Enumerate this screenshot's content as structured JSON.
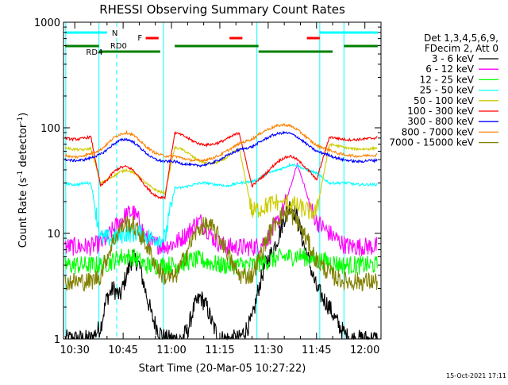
{
  "chart_data": {
    "type": "line",
    "title": "RHESSI Observing Summary Count Rates",
    "xlabel": "Start Time (20-Mar-05 10:27:22)",
    "ylabel_main": "Count Rate (s",
    "ylabel_sup1": "-1",
    "ylabel_mid": " detector",
    "ylabel_sup2": "-1",
    "ylabel_end": ")",
    "yscale": "log",
    "ylim": [
      1,
      1000
    ],
    "xlim_minutes": [
      -3.5,
      95
    ],
    "x_ticks": [
      {
        "value": 0,
        "label": "10:30"
      },
      {
        "value": 15,
        "label": "10:45"
      },
      {
        "value": 30,
        "label": "11:00"
      },
      {
        "value": 45,
        "label": "11:15"
      },
      {
        "value": 60,
        "label": "11:30"
      },
      {
        "value": 75,
        "label": "11:45"
      },
      {
        "value": 90,
        "label": "12:00"
      }
    ],
    "y_ticks": [
      {
        "value": 1,
        "label": "1"
      },
      {
        "value": 10,
        "label": "10"
      },
      {
        "value": 100,
        "label": "100"
      },
      {
        "value": 1000,
        "label": "1000"
      }
    ],
    "legend_header": [
      "Det 1,3,4,5,6,9,",
      "FDecim 2, Att 0"
    ],
    "series": [
      {
        "name": "3 - 6 keV",
        "color": "#000000",
        "y": [
          1,
          1,
          1,
          1,
          1,
          1.3,
          2.5,
          3,
          2.5,
          4,
          6,
          5,
          2.8,
          1.6,
          1.2,
          1,
          1,
          1,
          1.2,
          2,
          2.5,
          2,
          1.3,
          1,
          1,
          1,
          1,
          1.5,
          3,
          5,
          6.5,
          9,
          14,
          19,
          14,
          8,
          5,
          3,
          2,
          1.5,
          1.2,
          1,
          1,
          1,
          1,
          1,
          1
        ]
      },
      {
        "name": "6 - 12 keV",
        "color": "#ff00ff",
        "y": [
          7.5,
          7.5,
          7.5,
          7.5,
          7.5,
          8,
          9,
          11,
          13,
          15,
          16,
          13,
          9,
          8,
          7.8,
          7.6,
          8,
          9,
          10,
          12,
          13,
          11,
          9,
          8,
          7.5,
          7.4,
          7.4,
          7.4,
          7.6,
          8.5,
          10,
          13,
          18,
          28,
          45,
          30,
          18,
          13,
          10,
          9,
          8,
          7.5,
          7.5,
          7.5,
          7.5,
          7.5,
          7.5
        ]
      },
      {
        "name": "12 - 25 keV",
        "color": "#00ff00",
        "y": [
          5,
          5,
          5,
          5,
          5,
          5,
          5.2,
          5.5,
          6,
          6,
          6,
          5.5,
          5,
          5,
          5,
          5,
          5,
          5.2,
          5.4,
          5.6,
          5.6,
          5.4,
          5.2,
          5,
          5,
          5,
          5,
          5,
          5.2,
          5.4,
          5.6,
          5.8,
          6,
          6,
          6.2,
          6,
          5.8,
          5.6,
          5.4,
          5.2,
          5,
          5,
          5,
          5,
          5,
          5,
          5
        ]
      },
      {
        "name": "25 - 50 keV",
        "color": "#00ffff",
        "y": [
          30,
          29,
          29,
          30,
          30,
          9,
          9,
          9,
          9.5,
          10,
          10,
          10,
          9.5,
          9,
          9,
          9,
          27,
          27,
          28,
          29,
          30,
          30,
          29,
          29,
          28,
          29,
          30,
          31,
          33,
          36,
          38,
          40,
          42,
          45,
          44,
          41,
          39,
          37,
          30,
          30,
          30,
          30,
          29,
          29,
          29,
          29,
          29
        ]
      },
      {
        "name": "50 - 100 keV",
        "color": "#cccc00",
        "y": [
          65,
          63,
          62,
          62,
          64,
          30,
          32,
          35,
          38,
          40,
          38,
          34,
          30,
          27,
          25,
          24,
          65,
          63,
          58,
          52,
          48,
          46,
          46,
          48,
          52,
          58,
          64,
          16,
          17,
          18,
          19,
          20,
          20,
          19,
          18,
          17,
          16,
          16,
          70,
          68,
          66,
          64,
          63,
          63,
          63,
          64,
          65
        ]
      },
      {
        "name": "100 - 300 keV",
        "color": "#ff0000",
        "y": [
          80,
          78,
          78,
          80,
          82,
          28,
          32,
          38,
          42,
          43,
          40,
          34,
          28,
          24,
          22,
          22,
          90,
          86,
          80,
          74,
          70,
          69,
          70,
          73,
          78,
          84,
          90,
          28,
          32,
          36,
          42,
          48,
          52,
          54,
          50,
          44,
          38,
          32,
          82,
          80,
          78,
          77,
          77,
          78,
          79,
          80,
          82
        ]
      },
      {
        "name": "300 - 800 keV",
        "color": "#0000ff",
        "y": [
          50,
          49,
          49,
          50,
          52,
          56,
          62,
          70,
          76,
          78,
          74,
          66,
          58,
          52,
          49,
          48,
          48,
          46,
          45,
          44,
          44,
          45,
          47,
          50,
          54,
          58,
          62,
          66,
          72,
          78,
          84,
          88,
          90,
          88,
          82,
          74,
          66,
          60,
          55,
          52,
          50,
          49,
          48,
          48,
          49,
          49,
          50
        ]
      },
      {
        "name": "800 - 7000 keV",
        "color": "#ff8000",
        "y": [
          55,
          53,
          53,
          55,
          57,
          62,
          70,
          80,
          87,
          90,
          86,
          76,
          67,
          60,
          56,
          54,
          54,
          52,
          50,
          49,
          49,
          50,
          52,
          55,
          60,
          65,
          71,
          78,
          86,
          94,
          100,
          105,
          107,
          104,
          96,
          86,
          76,
          68,
          62,
          58,
          56,
          55,
          54,
          54,
          55,
          55,
          56
        ]
      },
      {
        "name": "7000 - 15000 keV",
        "color": "#808000",
        "y": [
          3.5,
          3.5,
          3.5,
          3.5,
          3.5,
          4,
          6,
          8.5,
          11,
          12.5,
          12,
          10,
          8,
          6,
          4.5,
          3.8,
          3.8,
          5,
          7,
          9.5,
          11.5,
          12,
          11,
          9,
          7,
          5,
          4,
          4,
          5.5,
          8,
          11,
          14,
          15.5,
          15,
          13,
          10,
          7.5,
          5.5,
          4.2,
          3.8,
          3.6,
          3.5,
          3.5,
          3.5,
          3.5,
          3.5,
          3.5
        ]
      }
    ],
    "x_minutes_sample": [
      -3,
      -1,
      1,
      3,
      5,
      8,
      10,
      12,
      14,
      16,
      18,
      20,
      22,
      24,
      26,
      28,
      31,
      33,
      35,
      37,
      39,
      41,
      43,
      45,
      47,
      49,
      51,
      55,
      57,
      59,
      61,
      63,
      65,
      67,
      69,
      71,
      73,
      75,
      79,
      81,
      83,
      85,
      87,
      89,
      91,
      93,
      94
    ],
    "annotations": {
      "N_label": "N",
      "F_label": "F",
      "RD0_label": "RD0",
      "RD4_label": "RD4",
      "cyan_bar_color": "#00ffff",
      "red_bar_color": "#ff0000",
      "green_bar_color": "#008000"
    },
    "grid": false,
    "legend_position": "right"
  },
  "footer": {
    "timestamp": "15-Oct-2021 17:11"
  }
}
